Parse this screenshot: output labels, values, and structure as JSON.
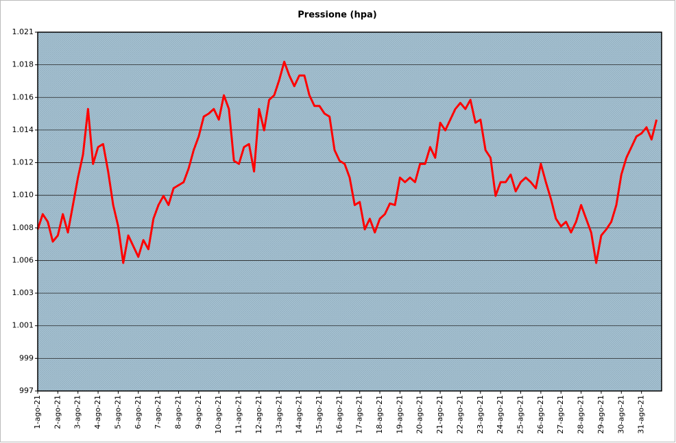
{
  "chart_data": {
    "type": "line",
    "title": "Pressione (hpa)",
    "categories": [
      "1-ago-21",
      null,
      null,
      null,
      "2-ago-21",
      null,
      null,
      null,
      "3-ago-21",
      null,
      null,
      null,
      "4-ago-21",
      null,
      null,
      null,
      "5-ago-21",
      null,
      null,
      null,
      "6-ago-21",
      null,
      null,
      null,
      "7-ago-21",
      null,
      null,
      null,
      "8-ago-21",
      null,
      null,
      null,
      "9-ago-21",
      null,
      null,
      null,
      "10-ago-21",
      null,
      null,
      null,
      "11-ago-21",
      null,
      null,
      null,
      "12-ago-21",
      null,
      null,
      null,
      "13-ago-21",
      null,
      null,
      null,
      "14-ago-21",
      null,
      null,
      null,
      "15-ago-21",
      null,
      null,
      null,
      "16-ago-21",
      null,
      null,
      null,
      "17-ago-21",
      null,
      null,
      null,
      "18-ago-21",
      null,
      null,
      null,
      "19-ago-21",
      null,
      null,
      null,
      "20-ago-21",
      null,
      null,
      null,
      "21-ago-21",
      null,
      null,
      null,
      "22-ago-21",
      null,
      null,
      null,
      "23-ago-21",
      null,
      null,
      null,
      "24-ago-21",
      null,
      null,
      null,
      "25-ago-21",
      null,
      null,
      null,
      "26-ago-21",
      null,
      null,
      null,
      "27-ago-21",
      null,
      null,
      null,
      "28-ago-21",
      null,
      null,
      null,
      "29-ago-21",
      null,
      null,
      null,
      "30-ago-21",
      null,
      null,
      null,
      "31-ago-21",
      null,
      null,
      null
    ],
    "values": [
      1007.6,
      1008.6,
      1008.1,
      1006.8,
      1007.2,
      1008.6,
      1007.4,
      1009.2,
      1011.0,
      1012.5,
      1015.5,
      1011.9,
      1013.0,
      1013.2,
      1011.4,
      1009.2,
      1007.8,
      1005.4,
      1007.2,
      1006.5,
      1005.8,
      1006.9,
      1006.3,
      1008.3,
      1009.2,
      1009.8,
      1009.2,
      1010.3,
      1010.5,
      1010.7,
      1011.6,
      1012.8,
      1013.7,
      1015.0,
      1015.2,
      1015.5,
      1014.8,
      1016.4,
      1015.5,
      1012.1,
      1011.9,
      1013.0,
      1013.2,
      1011.4,
      1015.5,
      1014.1,
      1016.1,
      1016.4,
      1017.4,
      1018.6,
      1017.7,
      1017.0,
      1017.7,
      1017.7,
      1016.4,
      1015.7,
      1015.7,
      1015.2,
      1015.0,
      1012.8,
      1012.1,
      1011.9,
      1011.0,
      1009.2,
      1009.4,
      1007.6,
      1008.3,
      1007.4,
      1008.3,
      1008.6,
      1009.3,
      1009.2,
      1011.0,
      1010.7,
      1011.0,
      1010.7,
      1011.9,
      1011.9,
      1013.0,
      1012.3,
      1014.6,
      1014.1,
      1014.8,
      1015.5,
      1015.9,
      1015.5,
      1016.1,
      1014.6,
      1014.8,
      1012.8,
      1012.3,
      1009.8,
      1010.7,
      1010.7,
      1011.2,
      1010.1,
      1010.7,
      1011.0,
      1010.7,
      1010.3,
      1011.9,
      1010.7,
      1009.6,
      1008.3,
      1007.8,
      1008.1,
      1007.4,
      1008.1,
      1009.2,
      1008.3,
      1007.4,
      1005.4,
      1007.2,
      1007.6,
      1008.1,
      1009.2,
      1011.2,
      1012.3,
      1013.0,
      1013.7,
      1013.9,
      1014.3,
      1013.5,
      1014.8
    ],
    "color": "#ff0000",
    "ylim": [
      997,
      1020.54
    ],
    "yticks": [
      {
        "value": 997,
        "label": "997"
      },
      {
        "value": 999.14,
        "label": "999"
      },
      {
        "value": 1001.28,
        "label": "1.001"
      },
      {
        "value": 1003.42,
        "label": "1.003"
      },
      {
        "value": 1005.56,
        "label": "1.006"
      },
      {
        "value": 1007.7,
        "label": "1.008"
      },
      {
        "value": 1009.84,
        "label": "1.010"
      },
      {
        "value": 1011.98,
        "label": "1.012"
      },
      {
        "value": 1014.12,
        "label": "1.014"
      },
      {
        "value": 1016.26,
        "label": "1.016"
      },
      {
        "value": 1018.4,
        "label": "1.018"
      },
      {
        "value": 1020.54,
        "label": "1.021"
      }
    ],
    "grid": true
  }
}
